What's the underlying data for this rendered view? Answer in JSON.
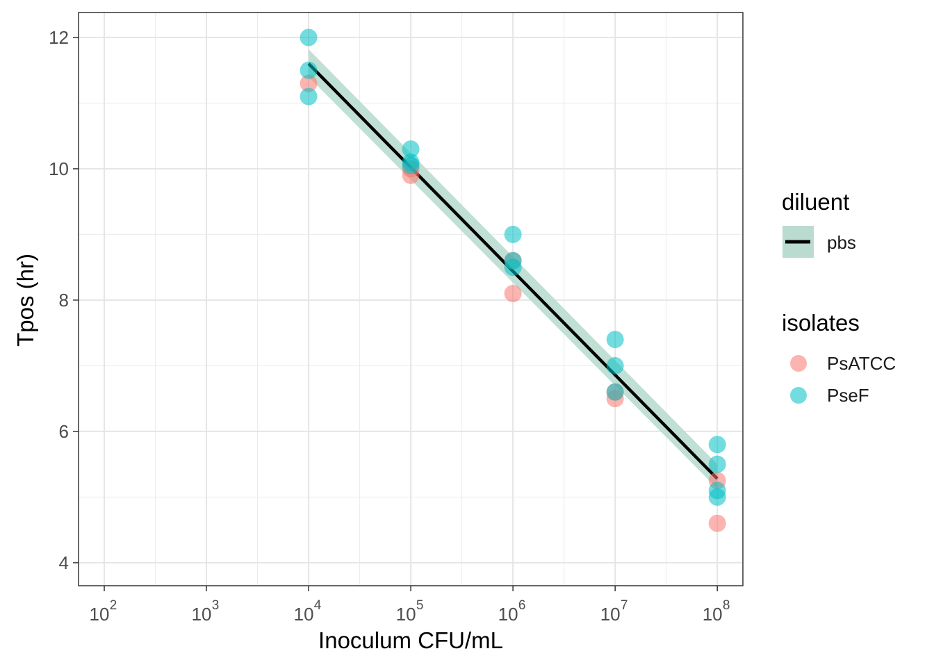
{
  "chart_data": {
    "type": "scatter",
    "xlabel": "Inoculum CFU/mL",
    "ylabel": "Tpos (hr)",
    "x_scale": "log10",
    "xlim": [
      56,
      178000000
    ],
    "ylim": [
      3.65,
      12.38
    ],
    "x_ticks": [
      100,
      1000,
      10000,
      100000,
      1000000,
      10000000,
      100000000
    ],
    "x_tick_labels": [
      {
        "base": "10",
        "exp": "2"
      },
      {
        "base": "10",
        "exp": "3"
      },
      {
        "base": "10",
        "exp": "4"
      },
      {
        "base": "10",
        "exp": "5"
      },
      {
        "base": "10",
        "exp": "6"
      },
      {
        "base": "10",
        "exp": "7"
      },
      {
        "base": "10",
        "exp": "8"
      }
    ],
    "y_ticks": [
      4,
      6,
      8,
      10,
      12
    ],
    "y_tick_labels": [
      "4",
      "6",
      "8",
      "10",
      "12"
    ],
    "grid": true,
    "legend_position": "right",
    "legends": {
      "diluent": {
        "title": "diluent",
        "items": [
          {
            "label": "pbs",
            "color": "#000000",
            "fill": "#b9dbd0"
          }
        ]
      },
      "isolates": {
        "title": "isolates",
        "items": [
          {
            "label": "PsATCC",
            "color": "#F8766D"
          },
          {
            "label": "PseF",
            "color": "#00BFC4"
          }
        ]
      }
    },
    "series": [
      {
        "name": "PsATCC",
        "color": "#F8766D",
        "points": [
          {
            "x": 10000,
            "y": 11.3
          },
          {
            "x": 100000,
            "y": 9.9
          },
          {
            "x": 100000,
            "y": 10.0
          },
          {
            "x": 1000000,
            "y": 8.1
          },
          {
            "x": 1000000,
            "y": 8.6
          },
          {
            "x": 10000000,
            "y": 6.5
          },
          {
            "x": 10000000,
            "y": 6.6
          },
          {
            "x": 100000000,
            "y": 5.25
          },
          {
            "x": 100000000,
            "y": 4.6
          }
        ]
      },
      {
        "name": "PseF",
        "color": "#00BFC4",
        "points": [
          {
            "x": 10000,
            "y": 12.0
          },
          {
            "x": 10000,
            "y": 11.5
          },
          {
            "x": 10000,
            "y": 11.1
          },
          {
            "x": 100000,
            "y": 10.3
          },
          {
            "x": 100000,
            "y": 10.1
          },
          {
            "x": 100000,
            "y": 10.05
          },
          {
            "x": 1000000,
            "y": 9.0
          },
          {
            "x": 1000000,
            "y": 8.6
          },
          {
            "x": 1000000,
            "y": 8.5
          },
          {
            "x": 10000000,
            "y": 7.4
          },
          {
            "x": 10000000,
            "y": 7.0
          },
          {
            "x": 10000000,
            "y": 6.6
          },
          {
            "x": 100000000,
            "y": 5.8
          },
          {
            "x": 100000000,
            "y": 5.5
          },
          {
            "x": 100000000,
            "y": 5.1
          },
          {
            "x": 100000000,
            "y": 5.0
          }
        ]
      }
    ],
    "fit": {
      "name": "pbs",
      "type": "linear",
      "color": "#000000",
      "band_color": "#b9dbd0",
      "x": [
        10000,
        100000000
      ],
      "y": [
        11.6,
        5.28
      ],
      "band_lower": [
        11.4,
        5.13
      ],
      "band_upper": [
        11.82,
        5.5
      ]
    }
  }
}
